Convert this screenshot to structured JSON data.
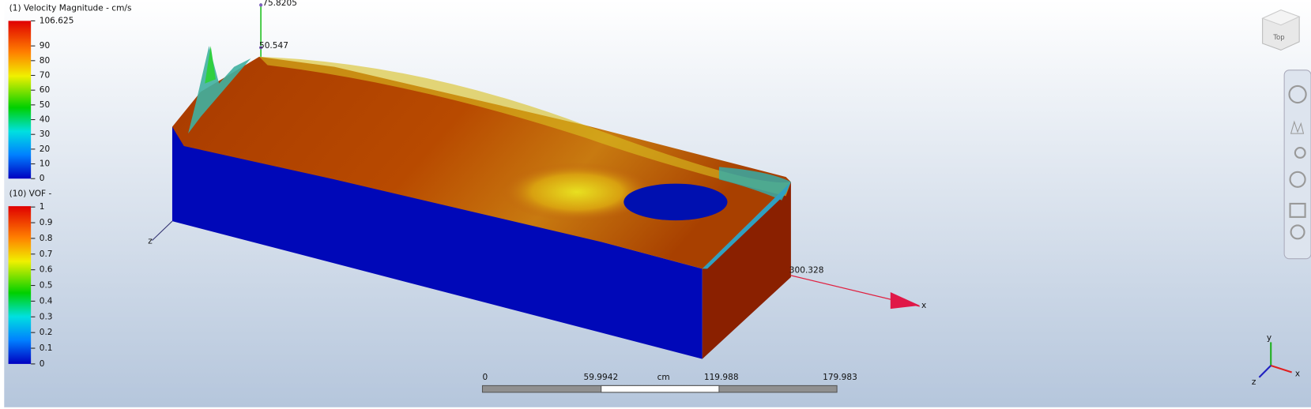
{
  "legends": [
    {
      "title": "(1) Velocity Magnitude - cm/s",
      "ticks": [
        "106.625",
        "90",
        "80",
        "70",
        "60",
        "50",
        "40",
        "30",
        "20",
        "10",
        "0"
      ]
    },
    {
      "title": "(10) VOF -",
      "ticks": [
        "1",
        "0.9",
        "0.8",
        "0.7",
        "0.6",
        "0.5",
        "0.4",
        "0.3",
        "0.2",
        "0.1",
        "0"
      ]
    }
  ],
  "axes": {
    "y_top": "75.8205",
    "y_mid": "50.547",
    "x_end": "300.328",
    "x_label": "x",
    "z_label": "z"
  },
  "scale_bar": {
    "labels": [
      "0",
      "59.9942",
      "119.988",
      "179.983"
    ],
    "unit": "cm"
  },
  "view_cube": "Top",
  "triad": {
    "x": "x",
    "y": "y",
    "z": "z"
  }
}
